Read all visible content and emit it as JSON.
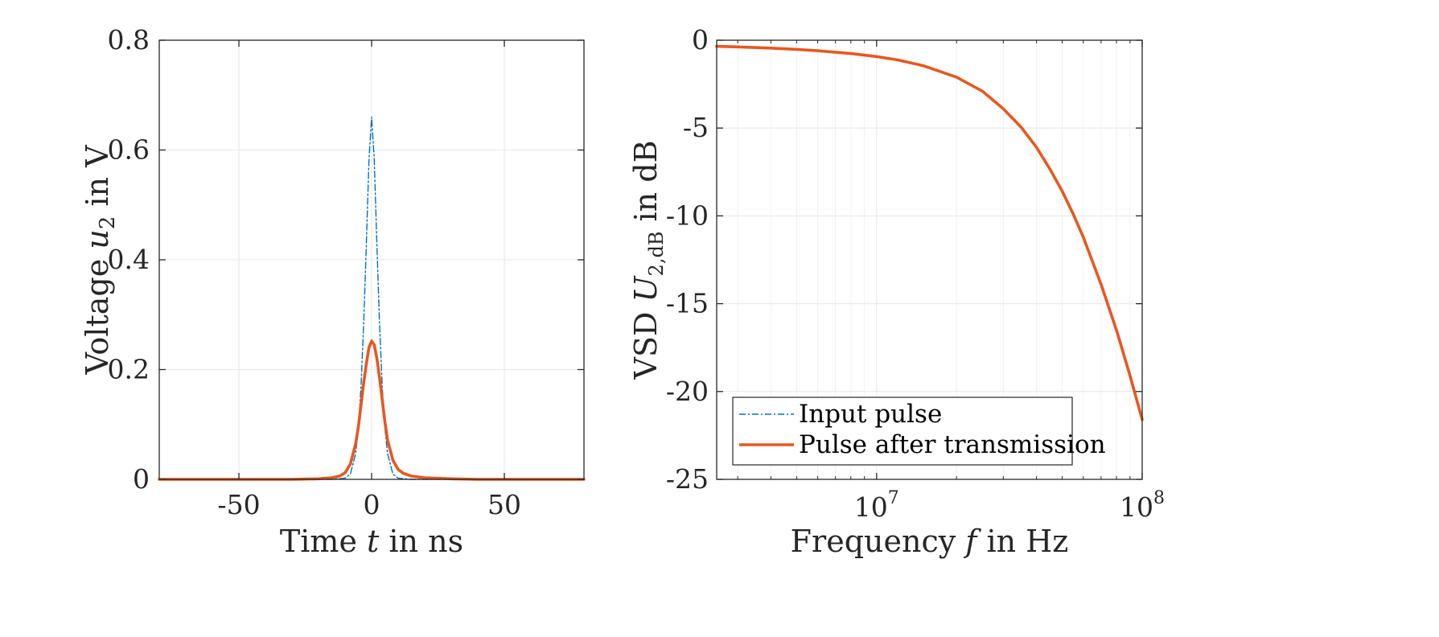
{
  "colors": {
    "input": "#0072BD",
    "output": "#E8571E",
    "axis": "#262626",
    "grid": "#e6e6e6"
  },
  "chart_data": [
    {
      "type": "line",
      "title": "",
      "xlabel": {
        "prefix": "Time ",
        "var": "t",
        "suffix": " in ns"
      },
      "ylabel": {
        "prefix": "Voltage ",
        "var": "u",
        "sub": "2",
        "suffix": " in V"
      },
      "xlim": [
        -80,
        80
      ],
      "ylim": [
        0,
        0.8
      ],
      "xticks": [
        -50,
        0,
        50
      ],
      "xtick_labels": [
        "-50",
        "0",
        "50"
      ],
      "yticks": [
        0,
        0.2,
        0.4,
        0.6,
        0.8
      ],
      "ytick_labels": [
        "0",
        "0.2",
        "0.4",
        "0.6",
        "0.8"
      ],
      "grid": true,
      "series": [
        {
          "name": "Input pulse",
          "style": "dash-dot",
          "x": [
            -80,
            -20,
            -15,
            -10,
            -8,
            -6,
            -5,
            -4,
            -3,
            -2,
            -1,
            0,
            1,
            2,
            3,
            4,
            5,
            6,
            8,
            10,
            15,
            20,
            80
          ],
          "y": [
            0,
            0,
            0,
            0.002,
            0.01,
            0.047,
            0.093,
            0.169,
            0.282,
            0.426,
            0.582,
            0.66,
            0.582,
            0.426,
            0.282,
            0.169,
            0.093,
            0.047,
            0.01,
            0.002,
            0,
            0,
            0
          ]
        },
        {
          "name": "Pulse after transmission",
          "style": "solid",
          "x": [
            -80,
            -30,
            -20,
            -15,
            -12,
            -10,
            -8,
            -6,
            -5,
            -4,
            -3,
            -2,
            -1,
            0,
            1,
            2,
            3,
            4,
            5,
            6,
            8,
            10,
            12,
            15,
            20,
            25,
            30,
            40,
            80
          ],
          "y": [
            0,
            0,
            0.001,
            0.003,
            0.006,
            0.012,
            0.028,
            0.065,
            0.095,
            0.135,
            0.175,
            0.21,
            0.24,
            0.252,
            0.245,
            0.22,
            0.185,
            0.145,
            0.105,
            0.072,
            0.035,
            0.018,
            0.011,
            0.006,
            0.003,
            0.002,
            0.001,
            0,
            0
          ]
        }
      ]
    },
    {
      "type": "line",
      "title": "",
      "xscale": "log",
      "xlabel": {
        "prefix": "Frequency ",
        "var": "f",
        "suffix": " in Hz"
      },
      "ylabel": {
        "prefix": "VSD ",
        "var": "U",
        "sub": "2,dB",
        "suffix": " in dB"
      },
      "xlim": [
        2500000,
        100000000
      ],
      "ylim": [
        -25,
        0
      ],
      "xticks": [
        10000000,
        100000000
      ],
      "xtick_labels": [
        {
          "base": "10",
          "exp": "7"
        },
        {
          "base": "10",
          "exp": "8"
        }
      ],
      "yticks": [
        -25,
        -20,
        -15,
        -10,
        -5,
        0
      ],
      "ytick_labels": [
        "-25",
        "-20",
        "-15",
        "-10",
        "-5",
        "0"
      ],
      "grid": true,
      "series": [
        {
          "name": "Pulse after transmission",
          "style": "solid",
          "x": [
            2500000,
            3000000,
            4000000,
            5000000,
            6000000,
            7000000,
            8000000,
            10000000,
            12000000,
            15000000,
            20000000,
            25000000,
            30000000,
            35000000,
            40000000,
            45000000,
            50000000,
            55000000,
            60000000,
            70000000,
            80000000,
            90000000,
            100000000
          ],
          "y": [
            -0.35,
            -0.38,
            -0.45,
            -0.52,
            -0.6,
            -0.68,
            -0.76,
            -0.93,
            -1.12,
            -1.45,
            -2.1,
            -2.9,
            -3.9,
            -4.95,
            -6.1,
            -7.35,
            -8.6,
            -9.9,
            -11.2,
            -13.9,
            -16.5,
            -19.1,
            -21.6
          ]
        }
      ],
      "legend": {
        "location": "bottom-left",
        "entries": [
          "Input pulse",
          "Pulse after transmission"
        ]
      }
    }
  ]
}
